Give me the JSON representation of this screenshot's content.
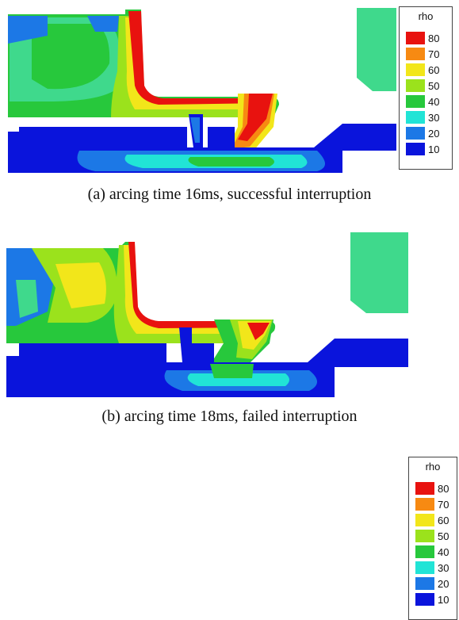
{
  "captions": {
    "a": "(a) arcing time 16ms, successful interruption",
    "b": "(b) arcing time 18ms, failed interruption"
  },
  "legend": {
    "title": "rho",
    "levels": [
      {
        "label": "80",
        "color": "#e8120f"
      },
      {
        "label": "70",
        "color": "#f78a12"
      },
      {
        "label": "60",
        "color": "#f2e61a"
      },
      {
        "label": "50",
        "color": "#9be21c"
      },
      {
        "label": "40",
        "color": "#27c83c"
      },
      {
        "label": "30",
        "color": "#21e4d6"
      },
      {
        "label": "20",
        "color": "#1c78e6"
      },
      {
        "label": "10",
        "color": "#0a14dc"
      }
    ]
  },
  "colors": {
    "high": "#e8120f",
    "orange": "#f78a12",
    "yellow": "#f2e61a",
    "lime": "#9be21c",
    "green": "#27c83c",
    "cyan": "#21e4d6",
    "lightblue": "#1c78e6",
    "blue": "#0a14dc",
    "mint": "#3fd98c"
  }
}
